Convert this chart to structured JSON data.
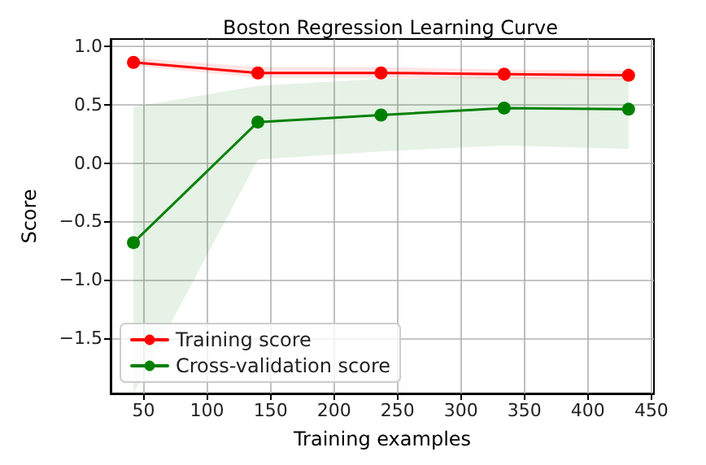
{
  "chart_data": {
    "type": "line",
    "title": "Boston Regression Learning Curve",
    "xlabel": "Training examples",
    "ylabel": "Score",
    "x": [
      42,
      140,
      237,
      334,
      432
    ],
    "series": [
      {
        "name": "Training score",
        "color": "#ff0000",
        "values": [
          0.86,
          0.77,
          0.77,
          0.76,
          0.75
        ],
        "lower": [
          0.83,
          0.73,
          0.73,
          0.72,
          0.71
        ],
        "upper": [
          0.9,
          0.82,
          0.82,
          0.8,
          0.79
        ]
      },
      {
        "name": "Cross-validation score",
        "color": "#008000",
        "values": [
          -0.68,
          0.35,
          0.41,
          0.47,
          0.46
        ],
        "lower": [
          -1.97,
          0.03,
          0.1,
          0.15,
          0.12
        ],
        "upper": [
          0.48,
          0.66,
          0.72,
          0.74,
          0.72
        ]
      }
    ],
    "xlim": [
      24,
      452
    ],
    "xticks": [
      50,
      100,
      150,
      200,
      250,
      300,
      350,
      400,
      450
    ],
    "ylim": [
      -1.97,
      1.06
    ],
    "yticks": [
      {
        "value": -1.5,
        "label": "−1.5"
      },
      {
        "value": -1.0,
        "label": "−1.0"
      },
      {
        "value": -0.5,
        "label": "−0.5"
      },
      {
        "value": 0.0,
        "label": "0.0"
      },
      {
        "value": 0.5,
        "label": "0.5"
      },
      {
        "value": 1.0,
        "label": "1.0"
      }
    ],
    "grid": true,
    "legend": "bottom left",
    "marker": "circle",
    "line_style": "solid"
  }
}
